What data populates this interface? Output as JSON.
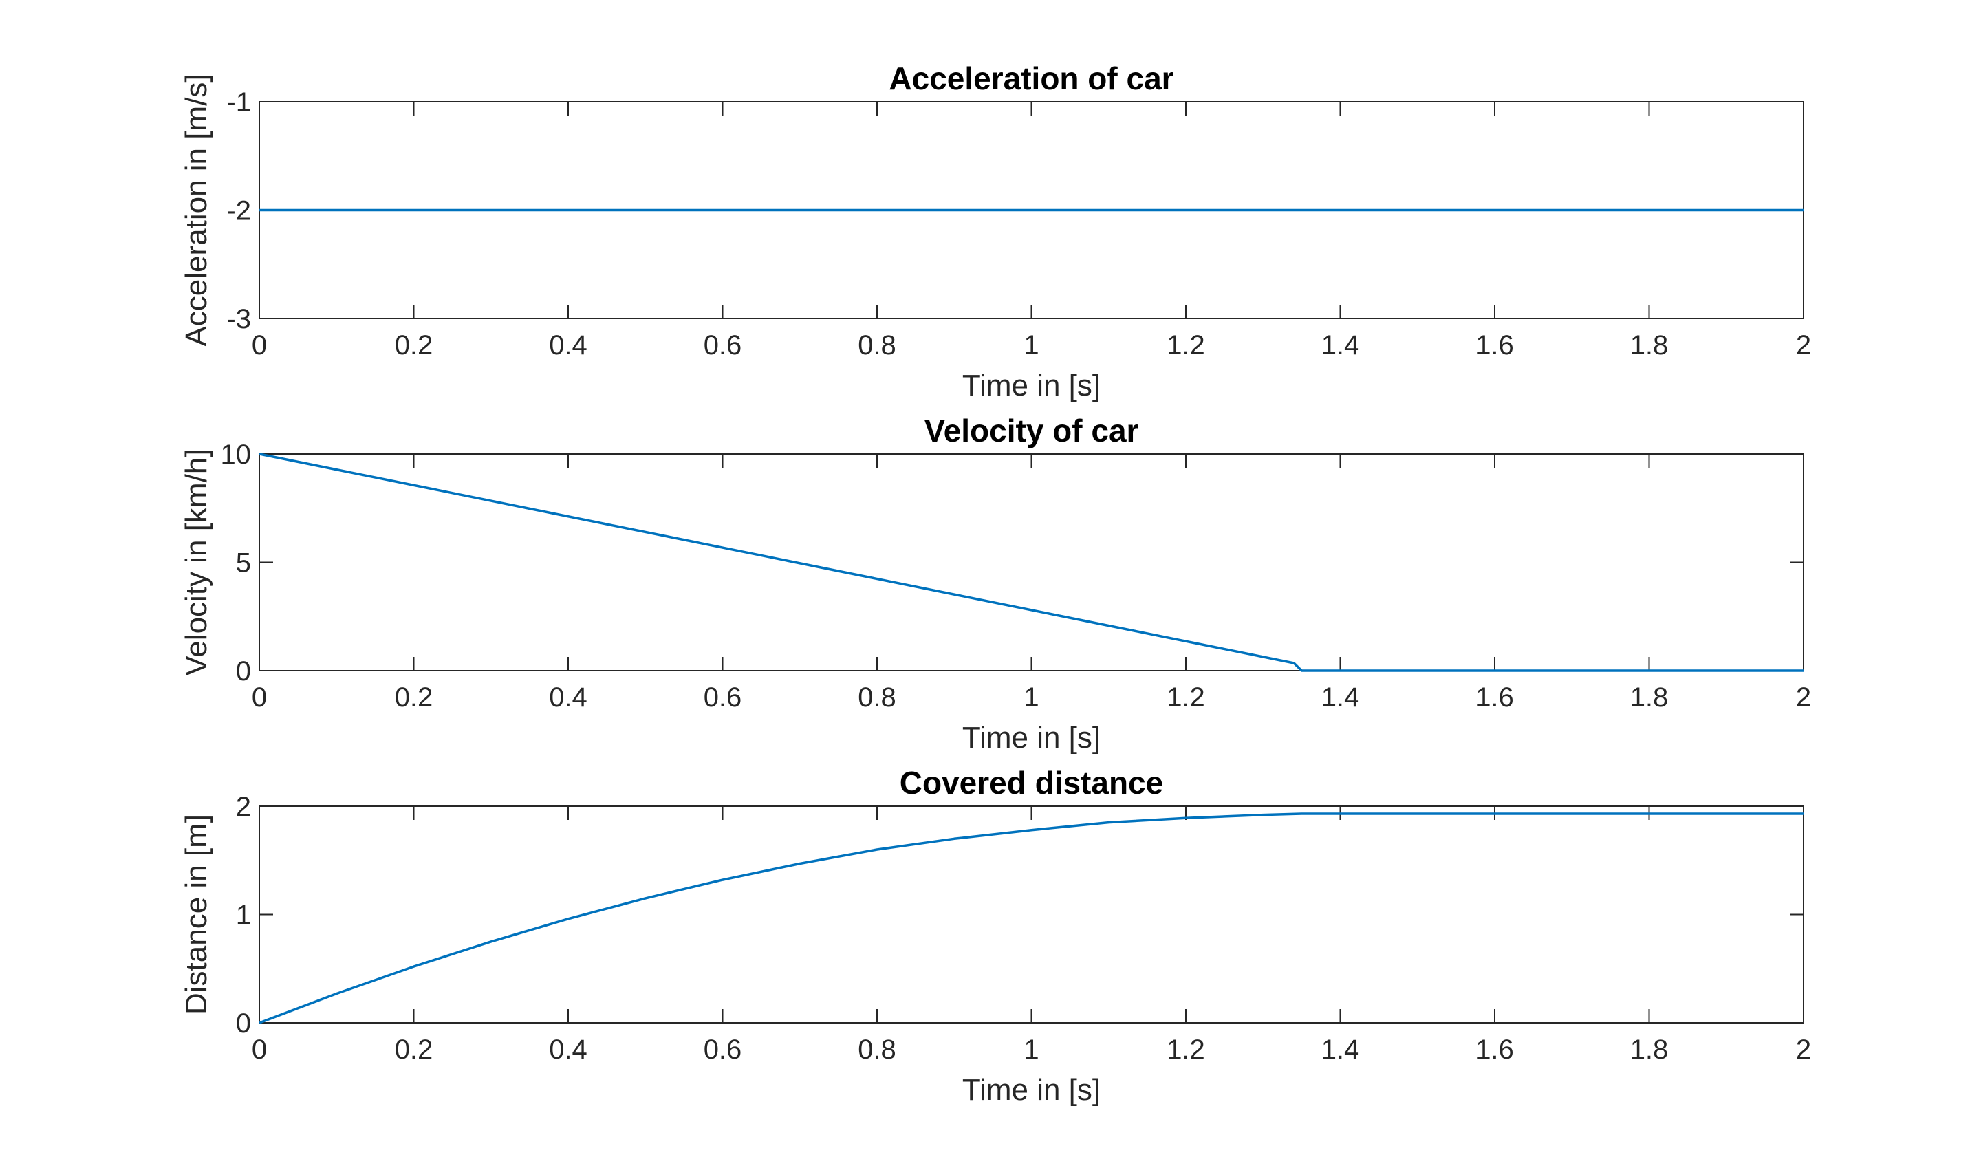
{
  "chart_data": [
    {
      "type": "line",
      "title": "Acceleration of car",
      "xlabel": "Time in [s]",
      "ylabel": "Acceleration in [m/s]",
      "xlim": [
        0,
        2
      ],
      "ylim": [
        -3,
        -1
      ],
      "xticks": [
        0,
        0.2,
        0.4,
        0.6,
        0.8,
        1,
        1.2,
        1.4,
        1.6,
        1.8,
        2
      ],
      "xtick_labels": [
        "0",
        "0.2",
        "0.4",
        "0.6",
        "0.8",
        "1",
        "1.2",
        "1.4",
        "1.6",
        "1.8",
        "2"
      ],
      "yticks": [
        -3,
        -2,
        -1
      ],
      "ytick_labels": [
        "-3",
        "-2",
        "-1"
      ],
      "grid": false,
      "color": "#0072BD",
      "series": [
        {
          "x": [
            0,
            2
          ],
          "y": [
            -2,
            -2
          ]
        }
      ]
    },
    {
      "type": "line",
      "title": "Velocity of car",
      "xlabel": "Time in [s]",
      "ylabel": "Velocity in [km/h]",
      "xlim": [
        0,
        2
      ],
      "ylim": [
        0,
        10
      ],
      "xticks": [
        0,
        0.2,
        0.4,
        0.6,
        0.8,
        1,
        1.2,
        1.4,
        1.6,
        1.8,
        2
      ],
      "xtick_labels": [
        "0",
        "0.2",
        "0.4",
        "0.6",
        "0.8",
        "1",
        "1.2",
        "1.4",
        "1.6",
        "1.8",
        "2"
      ],
      "yticks": [
        0,
        5,
        10
      ],
      "ytick_labels": [
        "0",
        "5",
        "10"
      ],
      "grid": false,
      "color": "#0072BD",
      "series": [
        {
          "x": [
            0,
            1.34,
            1.35,
            2
          ],
          "y": [
            10,
            0.35,
            0,
            0
          ]
        }
      ]
    },
    {
      "type": "line",
      "title": "Covered distance",
      "xlabel": "Time in [s]",
      "ylabel": "Distance in [m]",
      "xlim": [
        0,
        2
      ],
      "ylim": [
        0,
        2
      ],
      "xticks": [
        0,
        0.2,
        0.4,
        0.6,
        0.8,
        1,
        1.2,
        1.4,
        1.6,
        1.8,
        2
      ],
      "xtick_labels": [
        "0",
        "0.2",
        "0.4",
        "0.6",
        "0.8",
        "1",
        "1.2",
        "1.4",
        "1.6",
        "1.8",
        "2"
      ],
      "yticks": [
        0,
        1,
        2
      ],
      "ytick_labels": [
        "0",
        "1",
        "2"
      ],
      "grid": false,
      "color": "#0072BD",
      "series": [
        {
          "x": [
            0,
            0.1,
            0.2,
            0.3,
            0.4,
            0.5,
            0.6,
            0.7,
            0.8,
            0.9,
            1.0,
            1.1,
            1.2,
            1.3,
            1.35,
            1.4,
            1.6,
            1.8,
            2
          ],
          "y": [
            0,
            0.27,
            0.52,
            0.75,
            0.96,
            1.15,
            1.32,
            1.47,
            1.6,
            1.7,
            1.78,
            1.85,
            1.89,
            1.92,
            1.93,
            1.93,
            1.93,
            1.93,
            1.93
          ]
        }
      ]
    }
  ]
}
